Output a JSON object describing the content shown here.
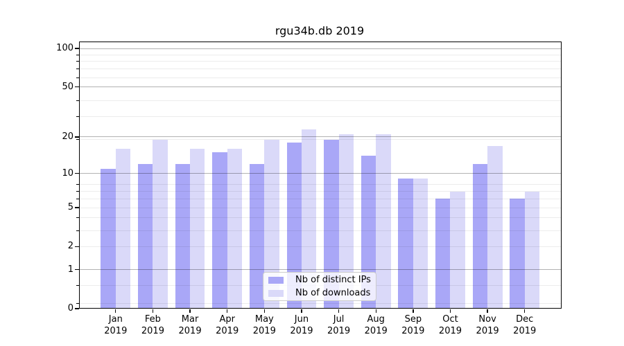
{
  "title": "rgu34b.db 2019",
  "chart_data": {
    "type": "bar",
    "title": "rgu34b.db 2019",
    "categories": [
      "Jan 2019",
      "Feb 2019",
      "Mar 2019",
      "Apr 2019",
      "May 2019",
      "Jun 2019",
      "Jul 2019",
      "Aug 2019",
      "Sep 2019",
      "Oct 2019",
      "Nov 2019",
      "Dec 2019"
    ],
    "series": [
      {
        "name": "Nb of distinct IPs",
        "color": "#a9a7f7",
        "values": [
          11,
          12,
          12,
          15,
          12,
          18,
          19,
          14,
          9,
          6,
          12,
          6
        ]
      },
      {
        "name": "Nb of downloads",
        "color": "#dad9f9",
        "values": [
          16,
          19,
          16,
          16,
          19,
          23,
          21,
          21,
          9,
          7,
          17,
          7
        ]
      }
    ],
    "xlabel": "",
    "ylabel": "",
    "yscale": "log(1+y)",
    "ylim": [
      0,
      113
    ],
    "yticks": [
      0,
      1,
      2,
      5,
      10,
      20,
      50,
      100
    ],
    "grid": {
      "major_lines": [
        1,
        10,
        20,
        50,
        100
      ],
      "minor_lines": [
        0.1,
        0.5,
        2,
        3,
        4,
        5,
        6,
        7,
        8,
        19,
        29,
        39,
        59,
        69,
        79,
        89
      ],
      "major_color": "rgba(0,0,0,0.30)",
      "minor_color": "rgba(0,0,0,0.075)"
    },
    "legend": {
      "position": "lower center",
      "entries": [
        "Nb of distinct IPs",
        "Nb of downloads"
      ]
    }
  },
  "colors": {
    "background": "#ffffff",
    "axis": "#000000",
    "bar_dark": "#a9a7f7",
    "bar_light": "#dad9f9"
  }
}
